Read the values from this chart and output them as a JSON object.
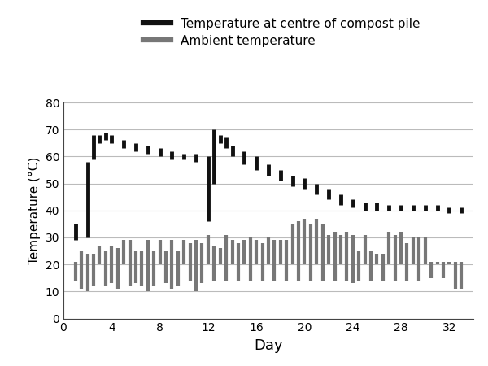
{
  "title": "",
  "xlabel": "Day",
  "ylabel": "Temperature (°C)",
  "xlim": [
    0,
    34
  ],
  "ylim": [
    0,
    80
  ],
  "xticks": [
    0,
    4,
    8,
    12,
    16,
    20,
    24,
    28,
    32
  ],
  "yticks": [
    0,
    10,
    20,
    30,
    40,
    50,
    60,
    70,
    80
  ],
  "legend_labels": [
    "Temperature at centre of compost pile",
    "Ambient temperature"
  ],
  "compost_color": "#111111",
  "ambient_color": "#777777",
  "compost_data": [
    {
      "day": 1,
      "low": 29,
      "high": 35
    },
    {
      "day": 2,
      "low": 30,
      "high": 58
    },
    {
      "day": 2.5,
      "low": 59,
      "high": 68
    },
    {
      "day": 3,
      "low": 65,
      "high": 68
    },
    {
      "day": 3.5,
      "low": 66,
      "high": 69
    },
    {
      "day": 4,
      "low": 65,
      "high": 68
    },
    {
      "day": 5,
      "low": 63,
      "high": 66
    },
    {
      "day": 6,
      "low": 62,
      "high": 65
    },
    {
      "day": 7,
      "low": 61,
      "high": 64
    },
    {
      "day": 8,
      "low": 60,
      "high": 63
    },
    {
      "day": 9,
      "low": 59,
      "high": 62
    },
    {
      "day": 10,
      "low": 59,
      "high": 61
    },
    {
      "day": 11,
      "low": 58,
      "high": 61
    },
    {
      "day": 12,
      "low": 36,
      "high": 60
    },
    {
      "day": 12.5,
      "low": 50,
      "high": 70
    },
    {
      "day": 13,
      "low": 65,
      "high": 68
    },
    {
      "day": 13.5,
      "low": 63,
      "high": 67
    },
    {
      "day": 14,
      "low": 60,
      "high": 64
    },
    {
      "day": 15,
      "low": 57,
      "high": 62
    },
    {
      "day": 16,
      "low": 55,
      "high": 60
    },
    {
      "day": 17,
      "low": 53,
      "high": 57
    },
    {
      "day": 18,
      "low": 51,
      "high": 55
    },
    {
      "day": 19,
      "low": 49,
      "high": 53
    },
    {
      "day": 20,
      "low": 48,
      "high": 52
    },
    {
      "day": 21,
      "low": 46,
      "high": 50
    },
    {
      "day": 22,
      "low": 44,
      "high": 48
    },
    {
      "day": 23,
      "low": 42,
      "high": 46
    },
    {
      "day": 24,
      "low": 41,
      "high": 44
    },
    {
      "day": 25,
      "low": 40,
      "high": 43
    },
    {
      "day": 26,
      "low": 40,
      "high": 43
    },
    {
      "day": 27,
      "low": 40,
      "high": 42
    },
    {
      "day": 28,
      "low": 40,
      "high": 42
    },
    {
      "day": 29,
      "low": 40,
      "high": 42
    },
    {
      "day": 30,
      "low": 40,
      "high": 42
    },
    {
      "day": 31,
      "low": 40,
      "high": 42
    },
    {
      "day": 32,
      "low": 39,
      "high": 41
    },
    {
      "day": 33,
      "low": 39,
      "high": 41
    }
  ],
  "ambient_data": [
    {
      "day": 1,
      "low": 14,
      "high": 21
    },
    {
      "day": 1.5,
      "low": 11,
      "high": 25
    },
    {
      "day": 2,
      "low": 10,
      "high": 24
    },
    {
      "day": 2.5,
      "low": 12,
      "high": 24
    },
    {
      "day": 3,
      "low": 20,
      "high": 27
    },
    {
      "day": 3.5,
      "low": 12,
      "high": 25
    },
    {
      "day": 4,
      "low": 13,
      "high": 27
    },
    {
      "day": 4.5,
      "low": 11,
      "high": 26
    },
    {
      "day": 5,
      "low": 20,
      "high": 29
    },
    {
      "day": 5.5,
      "low": 12,
      "high": 29
    },
    {
      "day": 6,
      "low": 13,
      "high": 25
    },
    {
      "day": 6.5,
      "low": 12,
      "high": 25
    },
    {
      "day": 7,
      "low": 10,
      "high": 29
    },
    {
      "day": 7.5,
      "low": 12,
      "high": 25
    },
    {
      "day": 8,
      "low": 20,
      "high": 29
    },
    {
      "day": 8.5,
      "low": 13,
      "high": 25
    },
    {
      "day": 9,
      "low": 11,
      "high": 29
    },
    {
      "day": 9.5,
      "low": 12,
      "high": 25
    },
    {
      "day": 10,
      "low": 20,
      "high": 29
    },
    {
      "day": 10.5,
      "low": 14,
      "high": 28
    },
    {
      "day": 11,
      "low": 10,
      "high": 29
    },
    {
      "day": 11.5,
      "low": 13,
      "high": 28
    },
    {
      "day": 12,
      "low": 20,
      "high": 31
    },
    {
      "day": 12.5,
      "low": 14,
      "high": 27
    },
    {
      "day": 13,
      "low": 20,
      "high": 26
    },
    {
      "day": 13.5,
      "low": 14,
      "high": 31
    },
    {
      "day": 14,
      "low": 20,
      "high": 29
    },
    {
      "day": 14.5,
      "low": 14,
      "high": 28
    },
    {
      "day": 15,
      "low": 20,
      "high": 29
    },
    {
      "day": 15.5,
      "low": 14,
      "high": 30
    },
    {
      "day": 16,
      "low": 20,
      "high": 29
    },
    {
      "day": 16.5,
      "low": 14,
      "high": 28
    },
    {
      "day": 17,
      "low": 20,
      "high": 30
    },
    {
      "day": 17.5,
      "low": 14,
      "high": 29
    },
    {
      "day": 18,
      "low": 20,
      "high": 29
    },
    {
      "day": 18.5,
      "low": 14,
      "high": 29
    },
    {
      "day": 19,
      "low": 20,
      "high": 35
    },
    {
      "day": 19.5,
      "low": 14,
      "high": 36
    },
    {
      "day": 20,
      "low": 20,
      "high": 37
    },
    {
      "day": 20.5,
      "low": 14,
      "high": 35
    },
    {
      "day": 21,
      "low": 20,
      "high": 37
    },
    {
      "day": 21.5,
      "low": 14,
      "high": 35
    },
    {
      "day": 22,
      "low": 20,
      "high": 31
    },
    {
      "day": 22.5,
      "low": 14,
      "high": 32
    },
    {
      "day": 23,
      "low": 20,
      "high": 31
    },
    {
      "day": 23.5,
      "low": 14,
      "high": 32
    },
    {
      "day": 24,
      "low": 13,
      "high": 31
    },
    {
      "day": 24.5,
      "low": 14,
      "high": 25
    },
    {
      "day": 25,
      "low": 20,
      "high": 31
    },
    {
      "day": 25.5,
      "low": 14,
      "high": 25
    },
    {
      "day": 26,
      "low": 20,
      "high": 24
    },
    {
      "day": 26.5,
      "low": 14,
      "high": 24
    },
    {
      "day": 27,
      "low": 20,
      "high": 32
    },
    {
      "day": 27.5,
      "low": 14,
      "high": 31
    },
    {
      "day": 28,
      "low": 20,
      "high": 32
    },
    {
      "day": 28.5,
      "low": 14,
      "high": 28
    },
    {
      "day": 29,
      "low": 20,
      "high": 30
    },
    {
      "day": 29.5,
      "low": 14,
      "high": 30
    },
    {
      "day": 30,
      "low": 20,
      "high": 30
    },
    {
      "day": 30.5,
      "low": 15,
      "high": 21
    },
    {
      "day": 31,
      "low": 20,
      "high": 21
    },
    {
      "day": 31.5,
      "low": 15,
      "high": 21
    },
    {
      "day": 32,
      "low": 20,
      "high": 21
    },
    {
      "day": 32.5,
      "low": 11,
      "high": 21
    },
    {
      "day": 33,
      "low": 11,
      "high": 21
    }
  ],
  "linewidth_compost": 3.5,
  "linewidth_ambient": 3.0,
  "legend_linewidth": 4.5,
  "legend_fontsize": 11,
  "xlabel_fontsize": 13,
  "ylabel_fontsize": 11
}
